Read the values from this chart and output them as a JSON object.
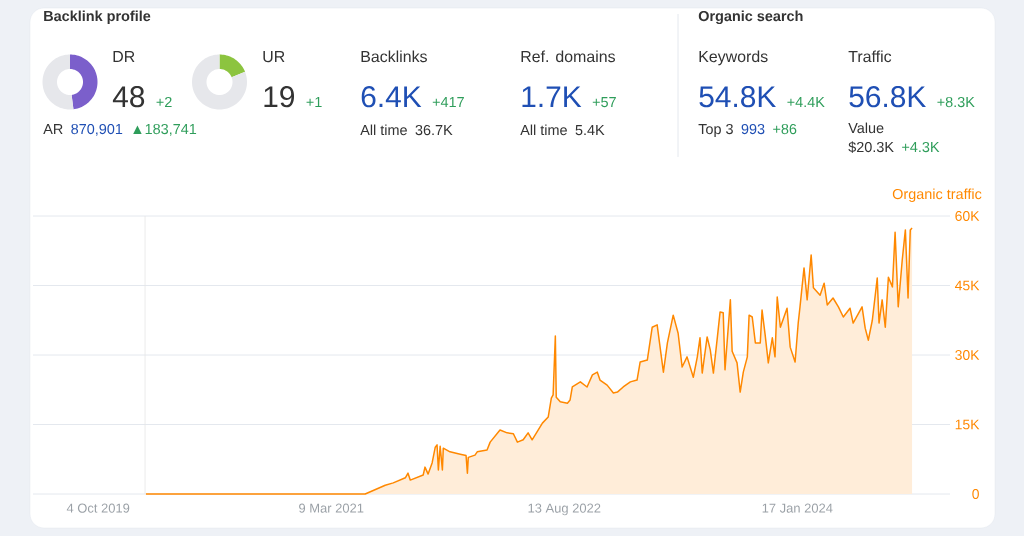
{
  "chart_data": [
    {
      "type": "other",
      "title": "Backlink profile"
    },
    {
      "type": "donut",
      "title": "DR",
      "categories": [
        null,
        null
      ],
      "values": [
        48,
        52
      ],
      "colors": [
        "#7b5fcb",
        "#e6e7eb"
      ],
      "annotations": [
        "48",
        "+2",
        "AR",
        "870,901",
        "▲183,741"
      ]
    },
    {
      "type": "donut",
      "title": "UR",
      "categories": [
        null,
        null
      ],
      "values": [
        19,
        81
      ],
      "colors": [
        "#8cc43f",
        "#e6e7eb"
      ],
      "annotations": [
        "19",
        "+1"
      ]
    },
    {
      "type": "other",
      "title": "Backlinks",
      "annotations": [
        "6.4K",
        "+417",
        "All time",
        "36.7K"
      ]
    },
    {
      "type": "other",
      "title": "Ref. domains",
      "annotations": [
        "1.7K",
        "+57",
        "All time",
        "5.4K"
      ]
    },
    {
      "type": "other",
      "title": "Organic search"
    },
    {
      "type": "other",
      "title": "Keywords",
      "annotations": [
        "54.8K",
        "+4.4K",
        "Top 3",
        "993",
        "+86"
      ]
    },
    {
      "type": "other",
      "title": "Traffic",
      "annotations": [
        "56.8K",
        "+8.3K",
        "Value",
        "$20.3K",
        "+4.3K"
      ]
    },
    {
      "type": "area",
      "ylabel": "Organic traffic",
      "color": "#ff8800",
      "x": [
        "2020-01-19",
        "2021-05-24",
        "2021-07-08",
        "2021-07-26",
        "2021-08-22",
        "2021-08-28",
        "2021-09-02",
        "2021-10-01",
        "2021-10-05",
        "2021-10-12",
        "2021-10-21",
        "2021-10-28",
        "2021-11-01",
        "2021-11-04",
        "2021-11-08",
        "2021-11-13",
        "2021-11-15",
        "2021-11-30",
        "2021-12-23",
        "2022-01-05",
        "2022-01-08",
        "2022-01-10",
        "2022-01-25",
        "2022-01-30",
        "2022-02-21",
        "2022-02-28",
        "2022-03-22",
        "2022-04-07",
        "2022-04-21",
        "2022-04-30",
        "2022-05-13",
        "2022-05-24",
        "2022-06-02",
        "2022-06-13",
        "2022-06-25",
        "2022-07-08",
        "2022-07-15",
        "2022-07-19",
        "2022-07-24",
        "2022-07-26",
        "2022-08-04",
        "2022-08-20",
        "2022-08-26",
        "2022-08-31",
        "2022-09-18",
        "2022-10-03",
        "2022-10-15",
        "2022-10-26",
        "2022-11-01",
        "2022-11-17",
        "2022-12-01",
        "2022-12-10",
        "2022-12-23",
        "2023-01-08",
        "2023-01-23",
        "2023-01-30",
        "2023-02-15",
        "2023-02-26",
        "2023-03-09",
        "2023-03-23",
        "2023-04-01",
        "2023-04-14",
        "2023-04-25",
        "2023-05-04",
        "2023-05-15",
        "2023-05-29",
        "2023-06-07",
        "2023-06-13",
        "2023-06-18",
        "2023-06-29",
        "2023-07-06",
        "2023-07-13",
        "2023-07-22",
        "2023-07-28",
        "2023-08-04",
        "2023-08-08",
        "2023-08-20",
        "2023-08-24",
        "2023-09-04",
        "2023-09-11",
        "2023-09-18",
        "2023-09-27",
        "2023-10-01",
        "2023-10-08",
        "2023-10-15",
        "2023-10-26",
        "2023-10-30",
        "2023-11-06",
        "2023-11-13",
        "2023-11-22",
        "2023-11-28",
        "2023-12-03",
        "2023-12-10",
        "2023-12-25",
        "2024-01-01",
        "2024-01-12",
        "2024-01-19",
        "2024-01-23",
        "2024-02-01",
        "2024-02-08",
        "2024-02-17",
        "2024-02-22",
        "2024-03-08",
        "2024-03-17",
        "2024-03-24",
        "2024-04-06",
        "2024-04-18",
        "2024-04-29",
        "2024-05-14",
        "2024-05-21",
        "2024-06-10",
        "2024-06-17",
        "2024-06-24",
        "2024-07-03",
        "2024-07-14",
        "2024-07-18",
        "2024-07-25",
        "2024-08-01",
        "2024-08-08",
        "2024-08-17",
        "2024-08-23",
        "2024-08-30",
        "2024-09-08",
        "2024-09-15",
        "2024-09-21",
        "2024-09-26",
        "2024-09-30"
      ],
      "values": [
        0,
        0,
        1900,
        2400,
        3500,
        4500,
        3000,
        4100,
        5800,
        4300,
        6700,
        10100,
        10600,
        5200,
        10300,
        5200,
        9900,
        9100,
        8600,
        8300,
        4500,
        7900,
        8400,
        9100,
        9500,
        11200,
        13800,
        13200,
        13000,
        11200,
        11700,
        13200,
        11700,
        13400,
        15300,
        16600,
        20700,
        21400,
        34100,
        20900,
        19900,
        19600,
        20300,
        23100,
        24200,
        23100,
        25700,
        26300,
        24600,
        23500,
        21800,
        22000,
        23100,
        24200,
        24600,
        28500,
        28900,
        36000,
        36500,
        26300,
        32600,
        38600,
        34700,
        27400,
        29600,
        25200,
        29600,
        33700,
        26100,
        33900,
        31100,
        26100,
        33900,
        39300,
        39100,
        26800,
        41900,
        30800,
        28300,
        22000,
        26300,
        29600,
        38600,
        38200,
        32600,
        32600,
        39700,
        34300,
        28300,
        33700,
        29600,
        42500,
        36000,
        40100,
        31700,
        28500,
        36900,
        40400,
        48800,
        41900,
        51600,
        44500,
        42900,
        45500,
        40800,
        42300,
        40400,
        38200,
        40100,
        36900,
        40400,
        35800,
        33200,
        37500,
        46600,
        36900,
        41900,
        36000,
        46800,
        44700,
        56500,
        40400,
        50500,
        57000,
        42300,
        57000,
        57400
      ],
      "xlim": [
        "2019-05-11",
        "2024-12-24"
      ],
      "ylim": [
        0,
        60000
      ],
      "xticks": [
        {
          "value": "2019-10-04",
          "label": "4 Oct 2019"
        },
        {
          "value": "2021-03-09",
          "label": "9 Mar 2021"
        },
        {
          "value": "2022-08-13",
          "label": "13 Aug 2022"
        },
        {
          "value": "2024-01-17",
          "label": "17 Jan 2024"
        }
      ],
      "yticks": [
        0,
        {
          "value": 15000,
          "label": "15K"
        },
        {
          "value": 30000,
          "label": "30K"
        },
        {
          "value": 45000,
          "label": "45K"
        },
        {
          "value": 60000,
          "label": "60K"
        }
      ],
      "grid": "y",
      "ref_lines": [
        {
          "axis": "x",
          "value": "2020-01-17",
          "color": "#e6e6e6"
        }
      ]
    }
  ]
}
